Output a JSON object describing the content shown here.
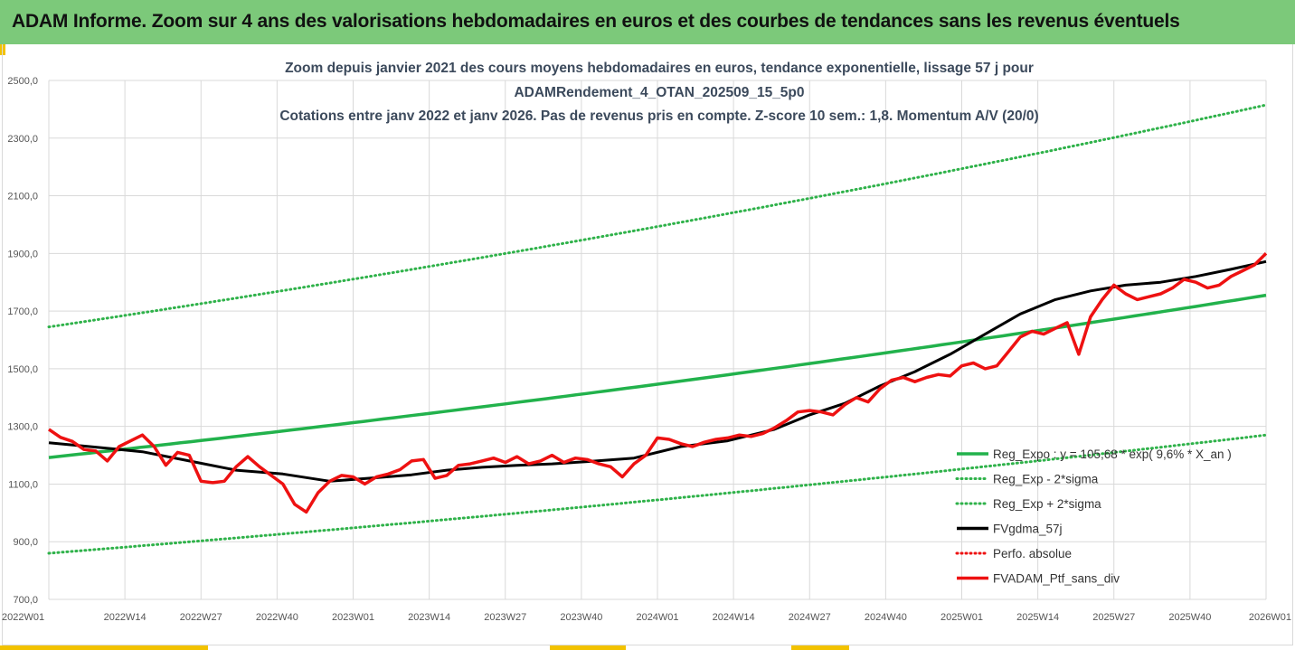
{
  "header": {
    "title": "ADAM Informe. Zoom sur 4 ans des valorisations hebdomadaires en euros et des courbes de tendances sans les revenus éventuels"
  },
  "colors": {
    "header_bg": "#7cc97a",
    "accent": "#f2c200",
    "trend_green": "#22b24c",
    "sigma_green": "#2fb24a",
    "smooth_black": "#000000",
    "portfolio_red": "#ee1111"
  },
  "chart_data": {
    "type": "line",
    "title_lines": [
      "Zoom depuis janvier 2021 des cours moyens hebdomadaires  en euros, tendance exponentielle, lissage 57 j pour",
      "ADAMRendement_4_OTAN_202509_15_5p0",
      "Cotations entre janv 2022 et janv 2026. Pas de revenus pris en compte. Z-score 10 sem.: 1,8. Momentum A/V (20/0)"
    ],
    "x_tick_labels": [
      "2022W01",
      "2022W14",
      "2022W27",
      "2022W40",
      "2023W01",
      "2023W14",
      "2023W27",
      "2023W40",
      "2024W01",
      "2024W14",
      "2024W27",
      "2024W40",
      "2025W01",
      "2025W14",
      "2025W27",
      "2025W40",
      "2026W01"
    ],
    "y_tick_labels": [
      "700,0",
      "900,0",
      "1100,0",
      "1300,0",
      "1500,0",
      "1700,0",
      "1900,0",
      "2100,0",
      "2300,0",
      "2500,0"
    ],
    "ylim": [
      700,
      2500
    ],
    "x_range_weeks": [
      0,
      208
    ],
    "legend": [
      {
        "label": "Reg_Expo : y = 105,68 * exp( 9,6% *  X_an )",
        "style": "solid",
        "color": "#22b24c"
      },
      {
        "label": "Reg_Exp - 2*sigma",
        "style": "dotted",
        "color": "#2fb24a"
      },
      {
        "label": "Reg_Exp + 2*sigma",
        "style": "dotted",
        "color": "#2fb24a"
      },
      {
        "label": "FVgdma_57j",
        "style": "solid",
        "color": "#000000"
      },
      {
        "label": "Perfo. absolue",
        "style": "dotted",
        "color": "#ee1111"
      },
      {
        "label": "FVADAM_Ptf_sans_div",
        "style": "solid",
        "color": "#ee1111"
      }
    ],
    "series": [
      {
        "name": "Reg_Expo",
        "start": 1192,
        "end": 1755
      },
      {
        "name": "Reg_Exp - 2*sigma",
        "start": 860,
        "end": 1270
      },
      {
        "name": "Reg_Exp + 2*sigma",
        "start": 1645,
        "end": 2415
      },
      {
        "name": "FVgdma_57j",
        "x": [
          0,
          8,
          16,
          24,
          32,
          40,
          48,
          56,
          62,
          68,
          74,
          80,
          86,
          92,
          100,
          108,
          116,
          124,
          130,
          136,
          142,
          148,
          154,
          160,
          166,
          172,
          178,
          184,
          190,
          196,
          202,
          208
        ],
        "y": [
          1243,
          1228,
          1212,
          1180,
          1148,
          1135,
          1110,
          1122,
          1132,
          1148,
          1158,
          1165,
          1170,
          1178,
          1190,
          1230,
          1250,
          1290,
          1340,
          1380,
          1440,
          1490,
          1550,
          1620,
          1690,
          1740,
          1770,
          1790,
          1800,
          1820,
          1845,
          1872
        ]
      },
      {
        "name": "FVADAM_Ptf_sans_div",
        "x": [
          0,
          2,
          4,
          6,
          8,
          10,
          12,
          14,
          16,
          18,
          20,
          22,
          24,
          26,
          28,
          30,
          32,
          34,
          36,
          38,
          40,
          42,
          44,
          46,
          48,
          50,
          52,
          54,
          56,
          58,
          60,
          62,
          64,
          66,
          68,
          70,
          72,
          74,
          76,
          78,
          80,
          82,
          84,
          86,
          88,
          90,
          92,
          94,
          96,
          98,
          100,
          102,
          104,
          106,
          108,
          110,
          112,
          114,
          116,
          118,
          120,
          122,
          124,
          126,
          128,
          130,
          132,
          134,
          136,
          138,
          140,
          142,
          144,
          146,
          148,
          150,
          152,
          154,
          156,
          158,
          160,
          162,
          164,
          166,
          168,
          170,
          172,
          174,
          176,
          178,
          180,
          182,
          184,
          186,
          188,
          190,
          192,
          194,
          196,
          198,
          200,
          202,
          204,
          206,
          208
        ],
        "y": [
          1290,
          1262,
          1248,
          1220,
          1215,
          1180,
          1230,
          1250,
          1270,
          1230,
          1165,
          1210,
          1200,
          1110,
          1105,
          1110,
          1160,
          1195,
          1160,
          1130,
          1100,
          1030,
          1003,
          1070,
          1110,
          1130,
          1125,
          1100,
          1125,
          1135,
          1150,
          1180,
          1185,
          1120,
          1130,
          1165,
          1170,
          1180,
          1190,
          1175,
          1195,
          1170,
          1180,
          1200,
          1175,
          1190,
          1185,
          1170,
          1160,
          1125,
          1170,
          1200,
          1260,
          1255,
          1240,
          1230,
          1245,
          1255,
          1260,
          1270,
          1265,
          1275,
          1295,
          1320,
          1350,
          1355,
          1350,
          1340,
          1375,
          1400,
          1385,
          1430,
          1460,
          1470,
          1455,
          1470,
          1480,
          1475,
          1510,
          1520,
          1500,
          1510,
          1560,
          1610,
          1630,
          1620,
          1640,
          1660,
          1550,
          1680,
          1740,
          1790,
          1760,
          1740,
          1750,
          1760,
          1780,
          1810,
          1800,
          1780,
          1790,
          1820,
          1840,
          1860,
          1900
        ]
      }
    ]
  }
}
